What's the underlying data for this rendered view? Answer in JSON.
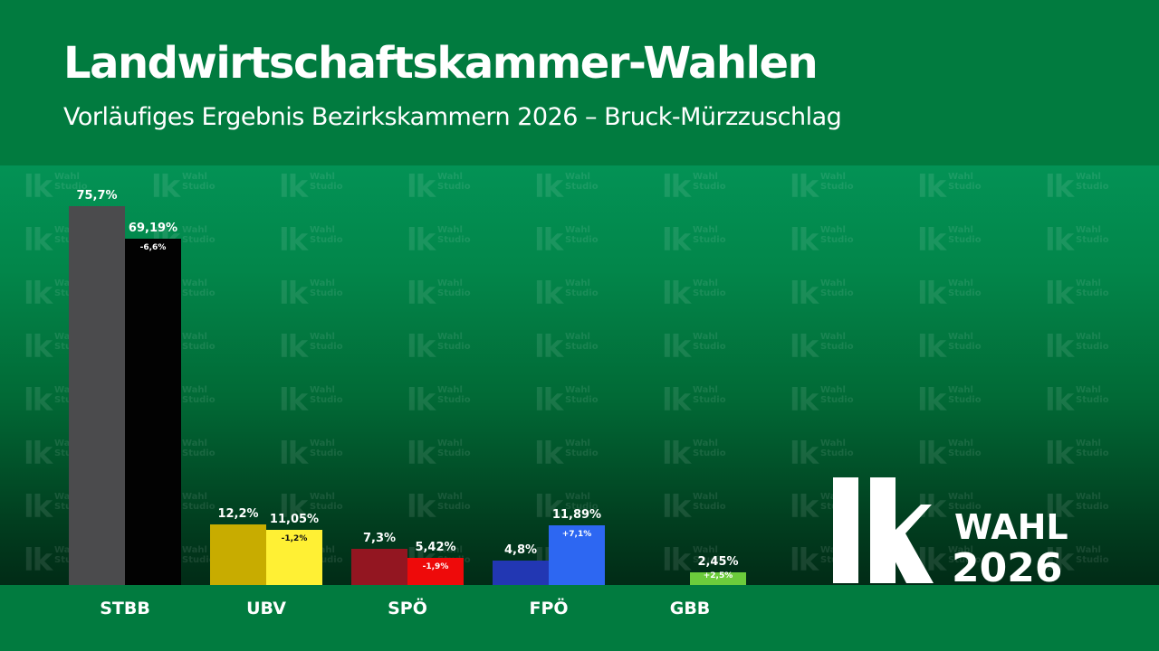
{
  "header": {
    "title": "Landwirtschaftskammer-Wahlen",
    "subtitle": "Vorläufiges Ergebnis Bezirkskammern 2026 – Bruck-Mürzzuschlag"
  },
  "watermark": {
    "mark": "lk",
    "line1": "Wahl",
    "line2": "Studio"
  },
  "logo": {
    "mark": "lk",
    "line1": "WAHL",
    "line2": "2026"
  },
  "colors": {
    "header_bg": "#017b3f",
    "plot_top": "#039255",
    "plot_bottom": "#012b16"
  },
  "chart_data": {
    "type": "bar",
    "categories": [
      "STBB",
      "UBV",
      "SPÖ",
      "FPÖ",
      "GBB"
    ],
    "ylim": [
      0,
      100
    ],
    "series": [
      {
        "values": [
          75.7,
          12.2,
          7.3,
          4.8,
          null
        ],
        "labels": [
          "75,7%",
          "12,2%",
          "7,3%",
          "4,8%",
          ""
        ],
        "colors": [
          "#4b4b4d",
          "#c8ac00",
          "#931621",
          "#2237b3",
          ""
        ]
      },
      {
        "values": [
          69.19,
          11.05,
          5.42,
          11.89,
          2.45
        ],
        "labels": [
          "69,19%",
          "11,05%",
          "5,42%",
          "11,89%",
          "2,45%"
        ],
        "colors": [
          "#020202",
          "#fff034",
          "#ee0a0a",
          "#2d67f2",
          "#6ccc3c"
        ],
        "changes": [
          "-6,6%",
          "-1,2%",
          "-1,9%",
          "+7,1%",
          "+2,5%"
        ],
        "change_text_colors": [
          "#ffffff",
          "#111111",
          "#ffffff",
          "#ffffff",
          "#ffffff"
        ]
      }
    ]
  }
}
